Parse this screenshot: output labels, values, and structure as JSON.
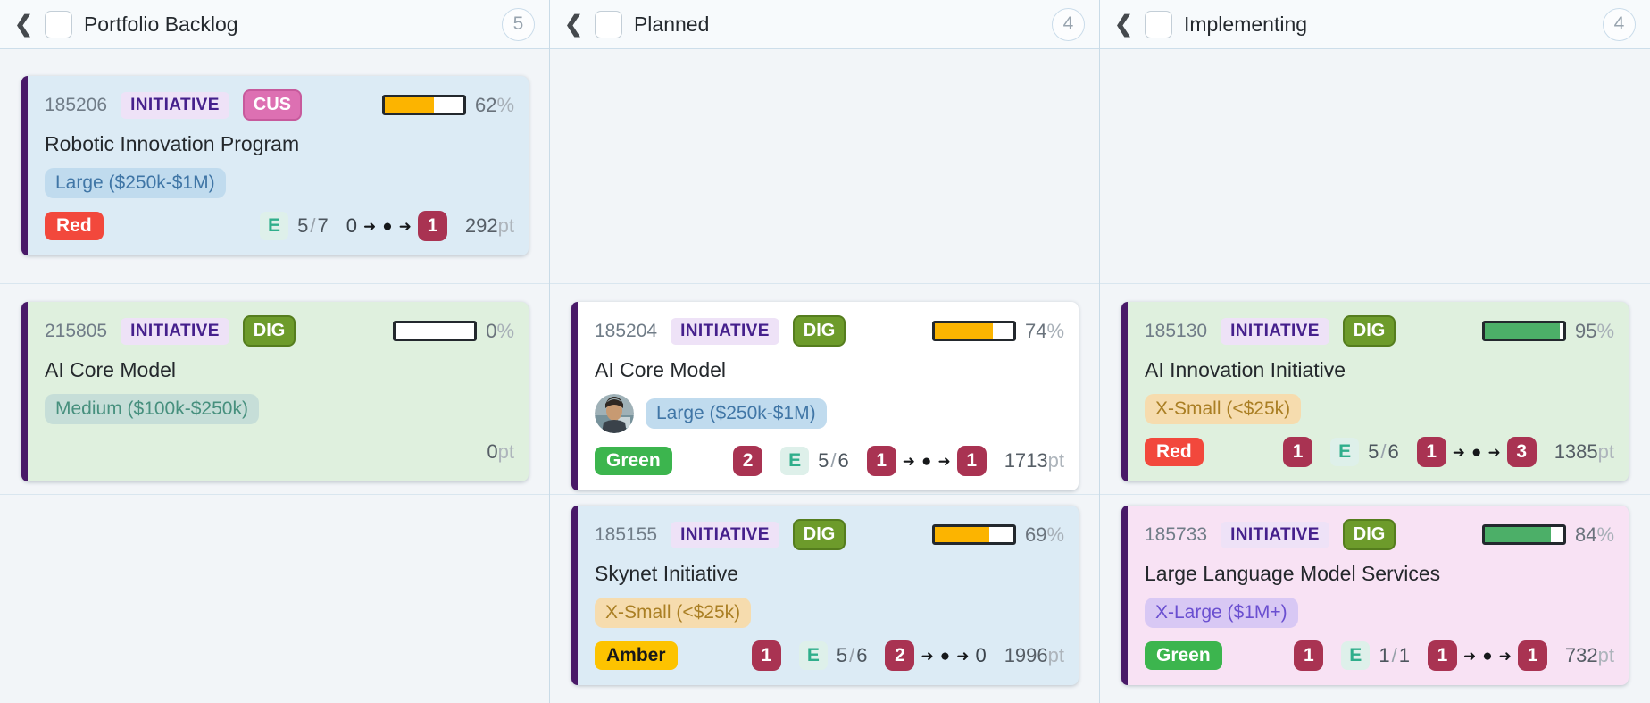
{
  "icons": {
    "collapse_chevron": "❮",
    "flow_arrow": "➜",
    "flow_dot": "●"
  },
  "labels": {
    "percent": "%",
    "points_unit": "pt"
  },
  "colors": {
    "status_red": "#f2483c",
    "status_green": "#3cb54e",
    "status_amber": "#fdc300",
    "progress_amber": "#fcb400",
    "progress_green": "#4caf68",
    "count_chip_crimson": "#a93352",
    "card_stripe_purple": "#491968",
    "card_blue": "#dcebf5",
    "card_green": "#dff0de",
    "card_white": "#ffffff",
    "card_pink": "#f8e2f4",
    "tag_cus_pink": "#dd70b2",
    "tag_dig_green": "#6d9b2b",
    "initiative_purple": "#45208c"
  },
  "columns": [
    {
      "title": "Portfolio Backlog",
      "count": "5"
    },
    {
      "title": "Planned",
      "count": "4"
    },
    {
      "title": "Implementing",
      "count": "4"
    }
  ],
  "cards": {
    "robotic": {
      "id": "185206",
      "type": "INITIATIVE",
      "tag": "CUS",
      "progress_pct": 62,
      "progress_label": "62",
      "title": "Robotic Innovation Program",
      "size": "Large ($250k-$1M)",
      "status": "Red",
      "effort": {
        "letter": "E",
        "done": "5",
        "sep": "/",
        "total": "7"
      },
      "flow": {
        "from": "0",
        "to": "1"
      },
      "points": "292"
    },
    "ai_core_backlog": {
      "id": "215805",
      "type": "INITIATIVE",
      "tag": "DIG",
      "progress_pct": 0,
      "progress_label": "0",
      "title": "AI Core Model",
      "size": "Medium ($100k-$250k)",
      "points": "0"
    },
    "ai_core_planned": {
      "id": "185204",
      "type": "INITIATIVE",
      "tag": "DIG",
      "progress_pct": 74,
      "progress_label": "74",
      "title": "AI Core Model",
      "size": "Large ($250k-$1M)",
      "status": "Green",
      "count_chip": "2",
      "effort": {
        "letter": "E",
        "done": "5",
        "sep": "/",
        "total": "6"
      },
      "flow": {
        "from": "1",
        "to": "1"
      },
      "points": "1713"
    },
    "skynet": {
      "id": "185155",
      "type": "INITIATIVE",
      "tag": "DIG",
      "progress_pct": 69,
      "progress_label": "69",
      "title": "Skynet Initiative",
      "size": "X-Small (<$25k)",
      "status": "Amber",
      "count_chip": "1",
      "effort": {
        "letter": "E",
        "done": "5",
        "sep": "/",
        "total": "6"
      },
      "flow": {
        "from": "2",
        "to": "0"
      },
      "points": "1996"
    },
    "ai_innovation": {
      "id": "185130",
      "type": "INITIATIVE",
      "tag": "DIG",
      "progress_pct": 95,
      "progress_label": "95",
      "title": "AI Innovation Initiative",
      "size": "X-Small (<$25k)",
      "status": "Red",
      "count_chip": "1",
      "effort": {
        "letter": "E",
        "done": "5",
        "sep": "/",
        "total": "6"
      },
      "flow": {
        "from": "1",
        "to": "3"
      },
      "points": "1385"
    },
    "llm_services": {
      "id": "185733",
      "type": "INITIATIVE",
      "tag": "DIG",
      "progress_pct": 84,
      "progress_label": "84",
      "title": "Large Language Model Services",
      "size": "X-Large ($1M+)",
      "status": "Green",
      "count_chip": "1",
      "effort": {
        "letter": "E",
        "done": "1",
        "sep": "/",
        "total": "1"
      },
      "flow": {
        "from": "1",
        "to": "1"
      },
      "points": "732"
    }
  }
}
